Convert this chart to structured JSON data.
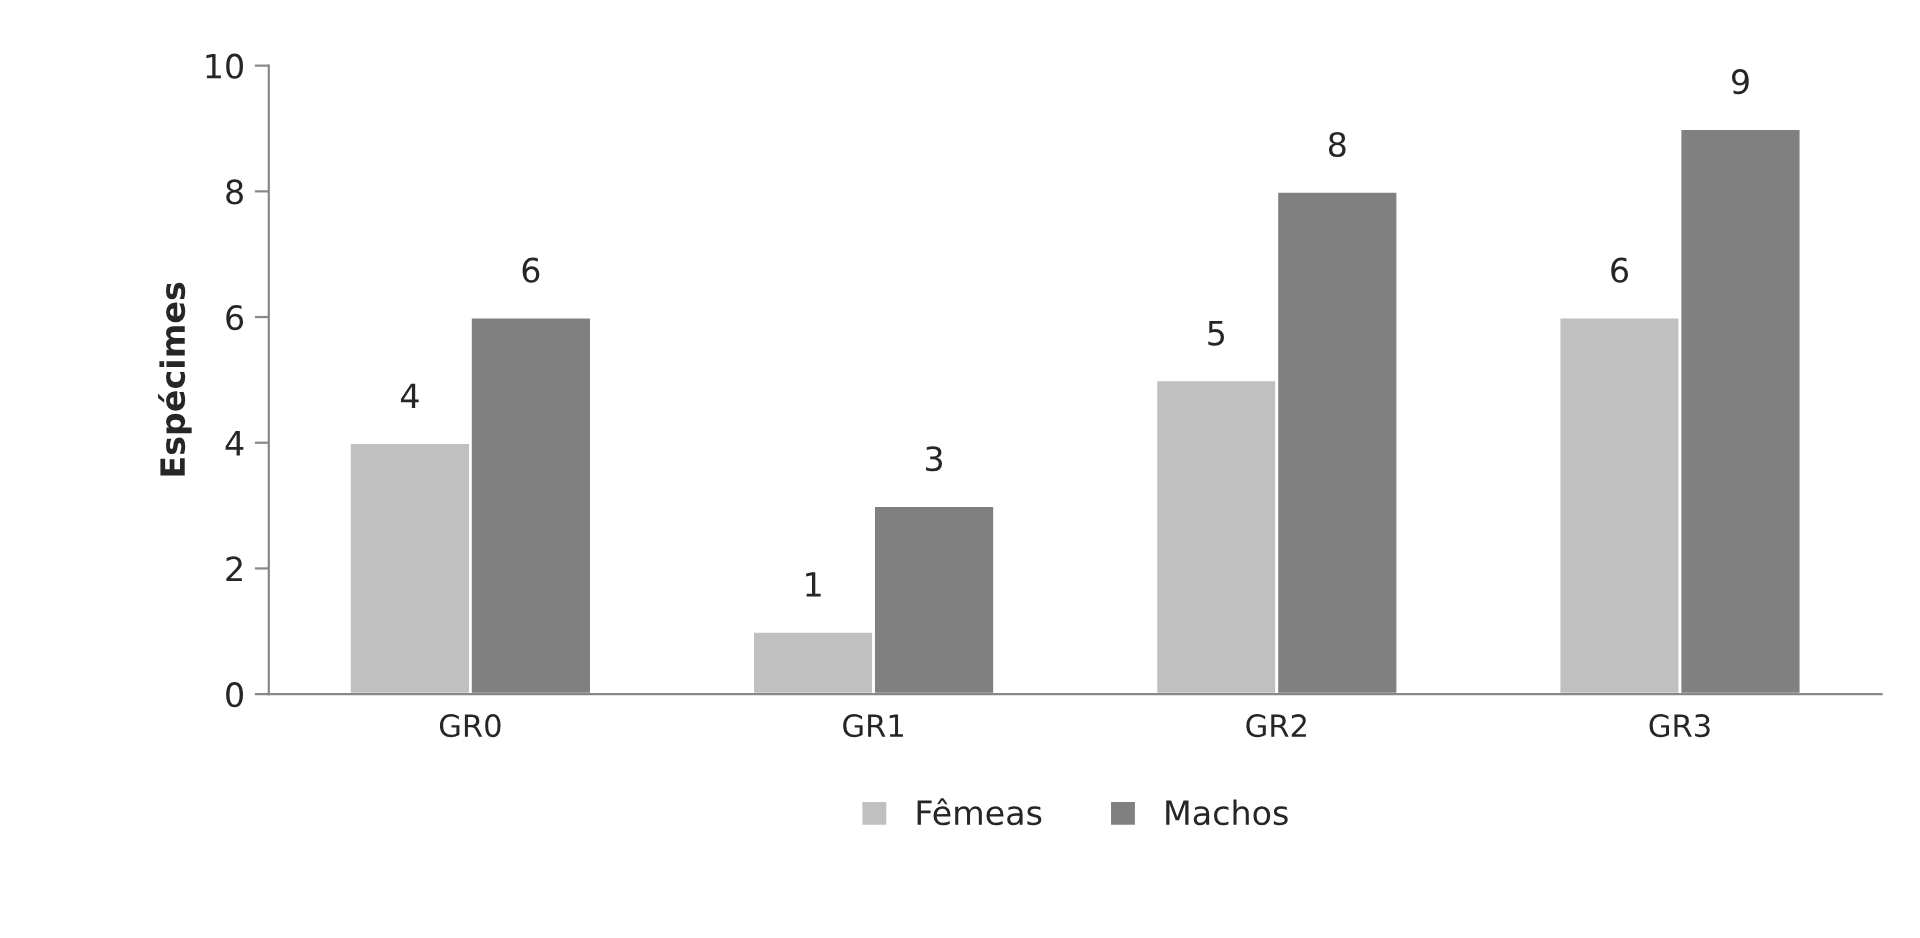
{
  "chart_data": {
    "type": "bar",
    "ylabel": "Espécimes",
    "categories": [
      "GR0",
      "GR1",
      "GR2",
      "GR3"
    ],
    "series": [
      {
        "name": "Fêmeas",
        "color": "#c0c0c0",
        "values": [
          4,
          1,
          5,
          6
        ]
      },
      {
        "name": "Machos",
        "color": "#808080",
        "values": [
          6,
          3,
          8,
          9
        ]
      }
    ],
    "ylim": [
      0,
      10
    ],
    "yticks": [
      0,
      2,
      4,
      6,
      8,
      10
    ],
    "grid": false,
    "legend": "bottom",
    "data_labels": true
  }
}
